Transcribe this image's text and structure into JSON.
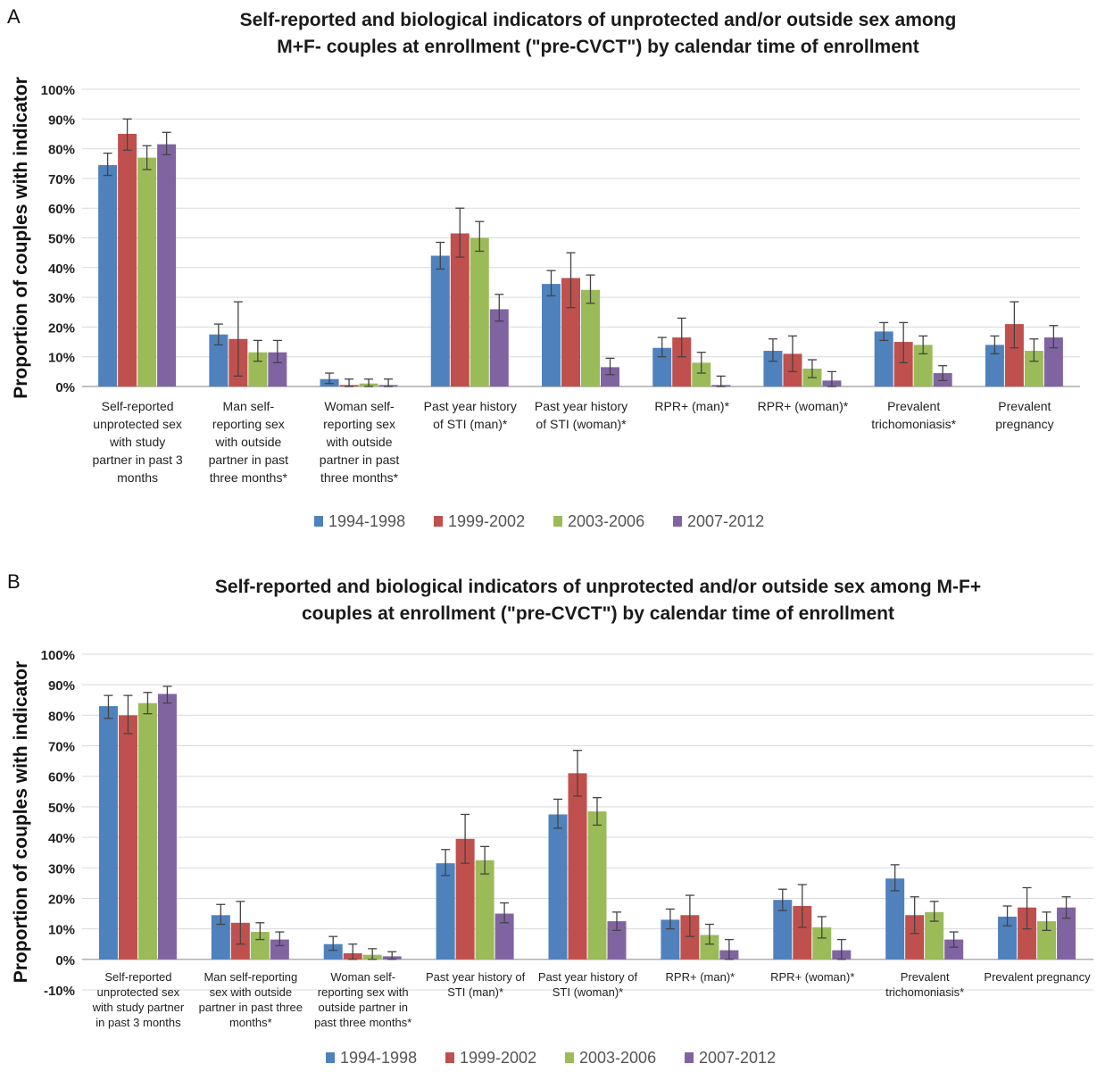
{
  "charts": [
    {
      "panel": "A",
      "title_line1": "Self-reported and biological indicators of unprotected and/or outside sex among",
      "title_line2": "M+F- couples at enrollment (\"pre-CVCT\") by calendar time of enrollment",
      "ylabel": "Proportion of couples with indicator",
      "yticks": [
        "0%",
        "10%",
        "20%",
        "30%",
        "40%",
        "50%",
        "60%",
        "70%",
        "80%",
        "90%",
        "100%"
      ],
      "category_lines": [
        [
          "Self-reported",
          "unprotected sex",
          "with study",
          "partner in past 3",
          "months"
        ],
        [
          "Man self-",
          "reporting sex",
          "with outside",
          "partner in past",
          "three months*"
        ],
        [
          "Woman self-",
          "reporting sex",
          "with outside",
          "partner in past",
          "three months*"
        ],
        [
          "Past year history",
          "of STI (man)*"
        ],
        [
          "Past year history",
          "of STI (woman)*"
        ],
        [
          "RPR+ (man)*"
        ],
        [
          "RPR+ (woman)*"
        ],
        [
          "Prevalent",
          "trichomoniasis*"
        ],
        [
          "Prevalent",
          "pregnancy"
        ]
      ]
    },
    {
      "panel": "B",
      "title_line1": "Self-reported and biological indicators of unprotected and/or outside sex among M-F+",
      "title_line2": "couples at enrollment (\"pre-CVCT\") by calendar time of enrollment",
      "ylabel": "Proportion of couples with indicator",
      "yticks": [
        "-10%",
        "0%",
        "10%",
        "20%",
        "30%",
        "40%",
        "50%",
        "60%",
        "70%",
        "80%",
        "90%",
        "100%"
      ],
      "category_lines": [
        [
          "Self-reported",
          "unprotected sex",
          "with study partner",
          "in past 3 months"
        ],
        [
          "Man self-reporting",
          "sex with outside",
          "partner in past three",
          "months*"
        ],
        [
          "Woman self-",
          "reporting sex with",
          "outside partner in",
          "past three months*"
        ],
        [
          "Past year history of",
          "STI (man)*"
        ],
        [
          "Past year history of",
          "STI (woman)*"
        ],
        [
          "RPR+ (man)*"
        ],
        [
          "RPR+ (woman)*"
        ],
        [
          "Prevalent",
          "trichomoniasis*"
        ],
        [
          "Prevalent pregnancy"
        ]
      ]
    }
  ],
  "colors": {
    "1994-1998": "#4f81bd",
    "1999-2002": "#c0504d",
    "2003-2006": "#9bbb59",
    "2007-2012": "#8064a2"
  },
  "chart_data": [
    {
      "type": "bar",
      "title": "Self-reported and biological indicators of unprotected and/or outside sex among M+F- couples at enrollment (\"pre-CVCT\") by calendar time of enrollment",
      "ylabel": "Proportion of couples with indicator",
      "ylim": [
        0,
        100
      ],
      "categories": [
        "Self-reported unprotected sex with study partner in past 3 months",
        "Man self-reporting sex with outside partner in past three months*",
        "Woman self-reporting sex with outside partner in past three months*",
        "Past year history of STI (man)*",
        "Past year history of STI (woman)*",
        "RPR+ (man)*",
        "RPR+ (woman)*",
        "Prevalent trichomoniasis*",
        "Prevalent pregnancy"
      ],
      "series": [
        {
          "name": "1994-1998",
          "values": [
            74.5,
            17.5,
            2.5,
            44,
            34.5,
            13,
            12,
            18.5,
            14
          ],
          "err_low": [
            71,
            14,
            1,
            39.5,
            30.5,
            10,
            8.5,
            15.5,
            11
          ],
          "err_high": [
            78.5,
            21,
            4.5,
            48.5,
            39,
            16.5,
            16,
            21.5,
            17
          ]
        },
        {
          "name": "1999-2002",
          "values": [
            85,
            16,
            0.5,
            51.5,
            36.5,
            16.5,
            11,
            15,
            21
          ],
          "err_low": [
            79.5,
            3.5,
            0,
            43.5,
            26.5,
            10,
            5,
            8,
            13
          ],
          "err_high": [
            90,
            28.5,
            2.5,
            60,
            45,
            23,
            17,
            21.5,
            28.5
          ]
        },
        {
          "name": "2003-2006",
          "values": [
            77,
            11.5,
            1,
            50,
            32.5,
            8,
            6,
            14,
            12
          ],
          "err_low": [
            73,
            8.5,
            0,
            45.5,
            28,
            4.5,
            3,
            11,
            8.5
          ],
          "err_high": [
            81,
            15.5,
            2.5,
            55.5,
            37.5,
            11.5,
            9,
            17,
            16
          ]
        },
        {
          "name": "2007-2012",
          "values": [
            81.5,
            11.5,
            0.5,
            26,
            6.5,
            0.5,
            2,
            4.5,
            16.5
          ],
          "err_low": [
            78,
            8,
            0,
            22,
            4,
            0,
            0,
            2,
            13
          ],
          "err_high": [
            85.5,
            15.5,
            2.5,
            31,
            9.5,
            3.5,
            5,
            7,
            20.5
          ]
        }
      ],
      "legend": "bottom",
      "grid": true
    },
    {
      "type": "bar",
      "title": "Self-reported and biological indicators of unprotected and/or outside sex among M-F+ couples at enrollment (\"pre-CVCT\") by calendar time of enrollment",
      "ylabel": "Proportion of couples with indicator",
      "ylim": [
        -10,
        100
      ],
      "categories": [
        "Self-reported unprotected sex with study partner in past 3 months",
        "Man self-reporting sex with outside partner in past three months*",
        "Woman self-reporting sex with outside partner in past three months*",
        "Past year history of STI (man)*",
        "Past year history of STI (woman)*",
        "RPR+ (man)*",
        "RPR+ (woman)*",
        "Prevalent trichomoniasis*",
        "Prevalent pregnancy"
      ],
      "series": [
        {
          "name": "1994-1998",
          "values": [
            83,
            14.5,
            5,
            31.5,
            47.5,
            13,
            19.5,
            26.5,
            14
          ],
          "err_low": [
            79,
            11.5,
            3,
            27.5,
            43,
            10,
            16,
            22.5,
            11
          ],
          "err_high": [
            86.5,
            18,
            7.5,
            36,
            52.5,
            16.5,
            23,
            31,
            17.5
          ]
        },
        {
          "name": "1999-2002",
          "values": [
            80,
            12,
            2,
            39.5,
            61,
            14.5,
            17.5,
            14.5,
            17
          ],
          "err_low": [
            74,
            5,
            0,
            31.5,
            53.5,
            7.5,
            10.5,
            8.5,
            10
          ],
          "err_high": [
            86.5,
            19,
            5,
            47.5,
            68.5,
            21,
            24.5,
            20.5,
            23.5
          ]
        },
        {
          "name": "2003-2006",
          "values": [
            84,
            9,
            1.5,
            32.5,
            48.5,
            8,
            10.5,
            15.5,
            12.5
          ],
          "err_low": [
            80.5,
            6.5,
            0,
            28,
            44,
            5,
            7,
            12.5,
            9.5
          ],
          "err_high": [
            87.5,
            12,
            3.5,
            37,
            53,
            11.5,
            14,
            19,
            15.5
          ]
        },
        {
          "name": "2007-2012",
          "values": [
            87,
            6.5,
            1,
            15,
            12.5,
            3,
            3,
            6.5,
            17
          ],
          "err_low": [
            84,
            4.5,
            0,
            12,
            9.5,
            0,
            0,
            4,
            13.5
          ],
          "err_high": [
            89.5,
            9,
            2.5,
            18.5,
            15.5,
            6.5,
            6.5,
            9,
            20.5
          ]
        }
      ],
      "legend": "bottom",
      "grid": true
    }
  ]
}
